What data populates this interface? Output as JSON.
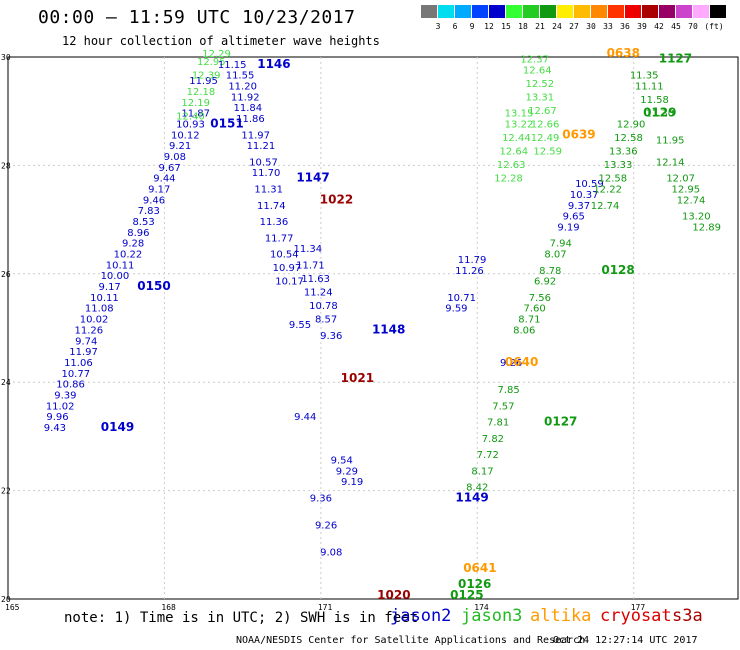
{
  "title": "00:00 — 11:59 UTC 10/23/2017",
  "subtitle": "12 hour collection of altimeter wave heights",
  "colorbar": {
    "colors": [
      "#777777",
      "#00ddee",
      "#00aaff",
      "#0044ff",
      "#0000cc",
      "#33ff33",
      "#22cc22",
      "#119911",
      "#ffee00",
      "#ffbb00",
      "#ff8800",
      "#ff3300",
      "#ee0000",
      "#aa0000",
      "#990066",
      "#cc44cc",
      "#ffaaff",
      "#000000"
    ],
    "labels": [
      "3",
      "6",
      "9",
      "12",
      "15",
      "18",
      "21",
      "24",
      "27",
      "30",
      "33",
      "36",
      "39",
      "42",
      "45",
      "70",
      "(ft)"
    ]
  },
  "note": "note: 1) Time is in UTC; 2) SWH is in feet",
  "satellites": [
    {
      "name": "jason2",
      "color": "#0000cc"
    },
    {
      "name": "jason3",
      "color": "#22bb22"
    },
    {
      "name": "altika",
      "color": "#ff9900"
    },
    {
      "name": "cryosat",
      "color": "#dd0000"
    },
    {
      "name": "s3a",
      "color": "#aa0000"
    }
  ],
  "credit": "NOAA/NESDIS Center for Satellite Applications and Research",
  "generated": "Oct 24 12:27:14 UTC 2017",
  "chart_data": {
    "type": "scatter",
    "xlim": [
      165,
      179
    ],
    "ylim": [
      20,
      30
    ],
    "x_ticks": [
      "165",
      "168",
      "171",
      "174",
      "177"
    ],
    "y_ticks": [
      "20",
      "22",
      "24",
      "26",
      "28",
      "30"
    ],
    "grid": true,
    "passes": [
      {
        "satellite": "jason2",
        "time": "0149",
        "time_at": [
          167.1,
          23.1
        ],
        "color": "#0000cc",
        "points": [
          [
            165.9,
            23.1,
            "9.43"
          ],
          [
            165.95,
            23.3,
            "9.96"
          ],
          [
            166.0,
            23.5,
            "11.02"
          ],
          [
            166.1,
            23.7,
            "9.39"
          ],
          [
            166.2,
            23.9,
            "10.86"
          ],
          [
            166.3,
            24.1,
            "10.77"
          ],
          [
            166.35,
            24.3,
            "11.06"
          ],
          [
            166.45,
            24.5,
            "11.97"
          ],
          [
            166.5,
            24.7,
            "9.74"
          ],
          [
            166.55,
            24.9,
            "11.26"
          ],
          [
            166.65,
            25.1,
            "10.02"
          ],
          [
            166.75,
            25.3,
            "11.08"
          ],
          [
            166.85,
            25.5,
            "10.11"
          ],
          [
            166.95,
            25.7,
            "9.17"
          ],
          [
            167.05,
            25.9,
            "10.00"
          ]
        ]
      },
      {
        "satellite": "jason2",
        "time": "0150",
        "time_at": [
          167.8,
          25.7
        ],
        "color": "#0000cc",
        "points": [
          [
            167.15,
            26.1,
            "10.11"
          ],
          [
            167.3,
            26.3,
            "10.22"
          ],
          [
            167.4,
            26.5,
            "9.28"
          ],
          [
            167.5,
            26.7,
            "8.96"
          ],
          [
            167.6,
            26.9,
            "8.53"
          ],
          [
            167.7,
            27.1,
            "7.83"
          ],
          [
            167.8,
            27.3,
            "9.46"
          ],
          [
            167.9,
            27.5,
            "9.17"
          ],
          [
            168.0,
            27.7,
            "9.44"
          ],
          [
            168.1,
            27.9,
            "9.67"
          ],
          [
            168.2,
            28.1,
            "9.08"
          ],
          [
            168.3,
            28.3,
            "9.21"
          ],
          [
            168.4,
            28.5,
            "10.12"
          ],
          [
            168.5,
            28.7,
            "10.93"
          ]
        ]
      },
      {
        "satellite": "jason2",
        "time": "0151",
        "time_at": [
          169.2,
          28.7
        ],
        "color": "#0000cc",
        "points": [
          [
            168.6,
            28.9,
            "11.87"
          ],
          [
            168.75,
            29.5,
            "11.95"
          ]
        ]
      },
      {
        "satellite": "jason3",
        "time": "",
        "time_at": null,
        "color": "#44dd44",
        "points": [
          [
            168.5,
            28.85,
            "12.40"
          ],
          [
            168.6,
            29.1,
            "12.19"
          ],
          [
            168.7,
            29.3,
            "12.18"
          ],
          [
            168.8,
            29.6,
            "12.39"
          ],
          [
            168.9,
            29.85,
            "12.95"
          ],
          [
            169.0,
            30.0,
            "12.29"
          ]
        ]
      },
      {
        "satellite": "jason2",
        "time": "1146",
        "time_at": [
          170.1,
          29.8
        ],
        "color": "#0000cc",
        "points": [
          [
            169.3,
            29.8,
            "11.15"
          ],
          [
            169.45,
            29.6,
            "11.55"
          ],
          [
            169.5,
            29.4,
            "11.20"
          ],
          [
            169.55,
            29.2,
            "11.92"
          ],
          [
            169.6,
            29.0,
            "11.84"
          ],
          [
            169.65,
            28.8,
            "11.86"
          ],
          [
            169.75,
            28.5,
            "11.97"
          ],
          [
            169.85,
            28.3,
            "11.21"
          ],
          [
            169.9,
            28.0,
            "10.57"
          ],
          [
            169.95,
            27.8,
            "11.70"
          ],
          [
            170.0,
            27.5,
            "11.31"
          ],
          [
            170.05,
            27.2,
            "11.74"
          ],
          [
            170.1,
            26.9,
            "11.36"
          ],
          [
            170.2,
            26.6,
            "11.77"
          ],
          [
            170.3,
            26.3,
            "10.54"
          ],
          [
            170.35,
            26.05,
            "10.97"
          ],
          [
            170.4,
            25.8,
            "10.17"
          ]
        ]
      },
      {
        "satellite": "jason2",
        "time": "1147",
        "time_at": [
          170.85,
          27.7
        ],
        "color": "#0000cc",
        "points": [
          [
            170.75,
            26.4,
            "11.34"
          ],
          [
            170.8,
            26.1,
            "11.71"
          ],
          [
            170.9,
            25.85,
            "11.63"
          ],
          [
            170.95,
            25.6,
            "11.24"
          ],
          [
            171.05,
            25.35,
            "10.78"
          ],
          [
            171.1,
            25.1,
            "8.57"
          ],
          [
            171.2,
            24.8,
            "9.36"
          ]
        ]
      },
      {
        "satellite": "jason2",
        "time": "1148",
        "time_at": [
          172.3,
          24.9
        ],
        "color": "#0000cc",
        "points": [
          [
            170.6,
            25.0,
            "9.55"
          ],
          [
            170.7,
            23.3,
            "9.44"
          ],
          [
            171.4,
            22.5,
            "9.54"
          ],
          [
            171.5,
            22.3,
            "9.29"
          ],
          [
            171.6,
            22.1,
            "9.19"
          ],
          [
            171.0,
            21.8,
            "9.36"
          ],
          [
            171.1,
            21.3,
            "9.26"
          ],
          [
            171.2,
            20.8,
            "9.08"
          ]
        ]
      },
      {
        "satellite": "jason2",
        "time": "1149",
        "time_at": [
          173.9,
          21.8
        ],
        "color": "#0000cc",
        "points": []
      },
      {
        "satellite": "jason3",
        "time": "0126",
        "time_at": [
          173.95,
          20.2
        ],
        "color": "#119911",
        "points": []
      },
      {
        "satellite": "jason3",
        "time": "0125",
        "time_at": [
          173.8,
          20.0
        ],
        "color": "#119911",
        "points": []
      },
      {
        "satellite": "jason3",
        "time": "0127",
        "time_at": [
          175.6,
          23.2
        ],
        "color": "#119911",
        "points": [
          [
            174.6,
            23.8,
            "7.85"
          ],
          [
            174.5,
            23.5,
            "7.57"
          ],
          [
            174.4,
            23.2,
            "7.81"
          ],
          [
            174.3,
            22.9,
            "7.82"
          ],
          [
            174.2,
            22.6,
            "7.72"
          ],
          [
            174.1,
            22.3,
            "8.17"
          ],
          [
            174.0,
            22.0,
            "8.42"
          ]
        ]
      },
      {
        "satellite": "jason3",
        "time": "0128",
        "time_at": [
          176.7,
          26.0
        ],
        "color": "#119911",
        "points": [
          [
            175.6,
            26.5,
            "7.94"
          ],
          [
            175.5,
            26.3,
            "8.07"
          ],
          [
            175.4,
            26.0,
            "8.78"
          ],
          [
            175.3,
            25.8,
            "6.92"
          ],
          [
            175.2,
            25.5,
            "7.56"
          ],
          [
            175.1,
            25.3,
            "7.60"
          ],
          [
            175.0,
            25.1,
            "8.71"
          ],
          [
            174.9,
            24.9,
            "8.06"
          ]
        ]
      },
      {
        "satellite": "jason2",
        "time": "",
        "time_at": null,
        "color": "#0000cc",
        "points": [
          [
            173.9,
            26.2,
            "11.79"
          ],
          [
            173.85,
            26.0,
            "11.26"
          ],
          [
            173.7,
            25.5,
            "10.71"
          ],
          [
            173.6,
            25.3,
            "9.59"
          ],
          [
            176.15,
            27.6,
            "10.59"
          ],
          [
            176.05,
            27.4,
            "10.37"
          ],
          [
            175.95,
            27.2,
            "9.37"
          ],
          [
            175.85,
            27.0,
            "9.65"
          ],
          [
            175.75,
            26.8,
            "9.19"
          ],
          [
            174.65,
            24.3,
            "9.26"
          ]
        ]
      },
      {
        "satellite": "altika",
        "time": "0639",
        "time_at": [
          175.95,
          28.5
        ],
        "color": "#ff9900",
        "points": []
      },
      {
        "satellite": "altika",
        "time": "0638",
        "time_at": [
          176.8,
          30.0
        ],
        "color": "#ff9900",
        "points": []
      },
      {
        "satellite": "altika",
        "time": "0640",
        "time_at": [
          174.85,
          24.3
        ],
        "color": "#ff9900",
        "points": []
      },
      {
        "satellite": "altika",
        "time": "0641",
        "time_at": [
          174.05,
          20.5
        ],
        "color": "#ff9900",
        "points": []
      },
      {
        "satellite": "jason3",
        "time": "",
        "time_at": null,
        "color": "#44dd44",
        "points": [
          [
            174.8,
            28.9,
            "13.15"
          ],
          [
            174.8,
            28.7,
            "13.22"
          ],
          [
            174.75,
            28.45,
            "12.44"
          ],
          [
            174.7,
            28.2,
            "12.64"
          ],
          [
            174.65,
            27.95,
            "12.63"
          ],
          [
            174.6,
            27.7,
            "12.28"
          ],
          [
            175.1,
            29.9,
            "12.37"
          ],
          [
            175.15,
            29.7,
            "12.64"
          ],
          [
            175.2,
            29.45,
            "12.52"
          ],
          [
            175.2,
            29.2,
            "13.31"
          ],
          [
            175.25,
            28.95,
            "12.67"
          ],
          [
            175.3,
            28.7,
            "12.66"
          ],
          [
            175.3,
            28.45,
            "12.49"
          ],
          [
            175.35,
            28.2,
            "12.59"
          ]
        ]
      },
      {
        "satellite": "jason2",
        "time": "1127",
        "time_at": [
          177.8,
          29.9
        ],
        "color": "#119911",
        "points": [
          [
            177.2,
            29.6,
            "11.35"
          ],
          [
            177.3,
            29.4,
            "11.11"
          ],
          [
            177.4,
            29.15,
            "11.58"
          ],
          [
            177.5,
            28.9,
            "11.30"
          ],
          [
            177.7,
            28.4,
            "11.95"
          ]
        ]
      },
      {
        "satellite": "jason3",
        "time": "0129",
        "time_at": [
          177.5,
          28.9
        ],
        "color": "#119911",
        "points": [
          [
            176.95,
            28.7,
            "12.90"
          ],
          [
            176.9,
            28.45,
            "12.58"
          ],
          [
            176.8,
            28.2,
            "13.36"
          ],
          [
            176.7,
            27.95,
            "13.33"
          ],
          [
            176.6,
            27.7,
            "12.58"
          ],
          [
            176.5,
            27.5,
            "12.22"
          ],
          [
            176.45,
            27.2,
            "12.74"
          ],
          [
            177.7,
            28.0,
            "12.14"
          ],
          [
            177.9,
            27.7,
            "12.07"
          ],
          [
            178.0,
            27.5,
            "12.95"
          ],
          [
            178.1,
            27.3,
            "12.74"
          ],
          [
            178.2,
            27.0,
            "13.20"
          ],
          [
            178.4,
            26.8,
            "12.89"
          ]
        ]
      }
    ]
  },
  "satellite_prefix": "",
  "label_2022": "1022",
  "label_1021": "1021",
  "label_1020": "1020"
}
